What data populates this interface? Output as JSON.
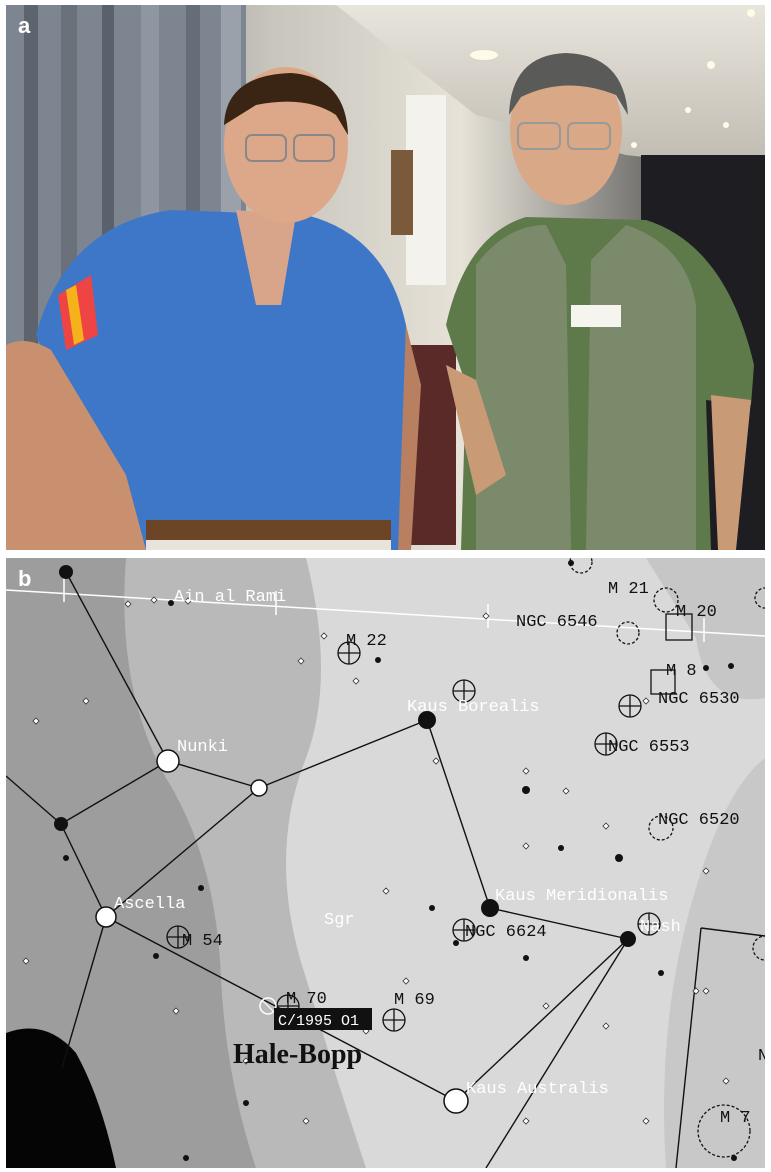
{
  "panels": {
    "a": {
      "letter": "a"
    },
    "b": {
      "letter": "b"
    }
  },
  "star_map": {
    "stars_named": [
      "Ain al Rami",
      "Nunki",
      "Ascella",
      "Kaus Borealis",
      "Kaus Meridionalis",
      "Nash",
      "Kaus Australis"
    ],
    "constellation": "Sgr",
    "objects": [
      "M 22",
      "M 21",
      "M 20",
      "M 8",
      "NGC 6546",
      "NGC 6530",
      "NGC 6553",
      "NGC 6520",
      "M 54",
      "NGC 6624",
      "M 70",
      "M 69",
      "M 7"
    ],
    "comet": {
      "designation": "C/1995 O1",
      "name": "Hale-Bopp"
    },
    "edge_fragment": "N"
  },
  "colors": {
    "map_light": "#dcdcdc",
    "map_mid": "#b9b9b9",
    "map_dark": "#9a9a9a",
    "map_black": "#050505",
    "shirt_blue": "#3f77c8",
    "vest_olive": "#7c8a6c"
  }
}
